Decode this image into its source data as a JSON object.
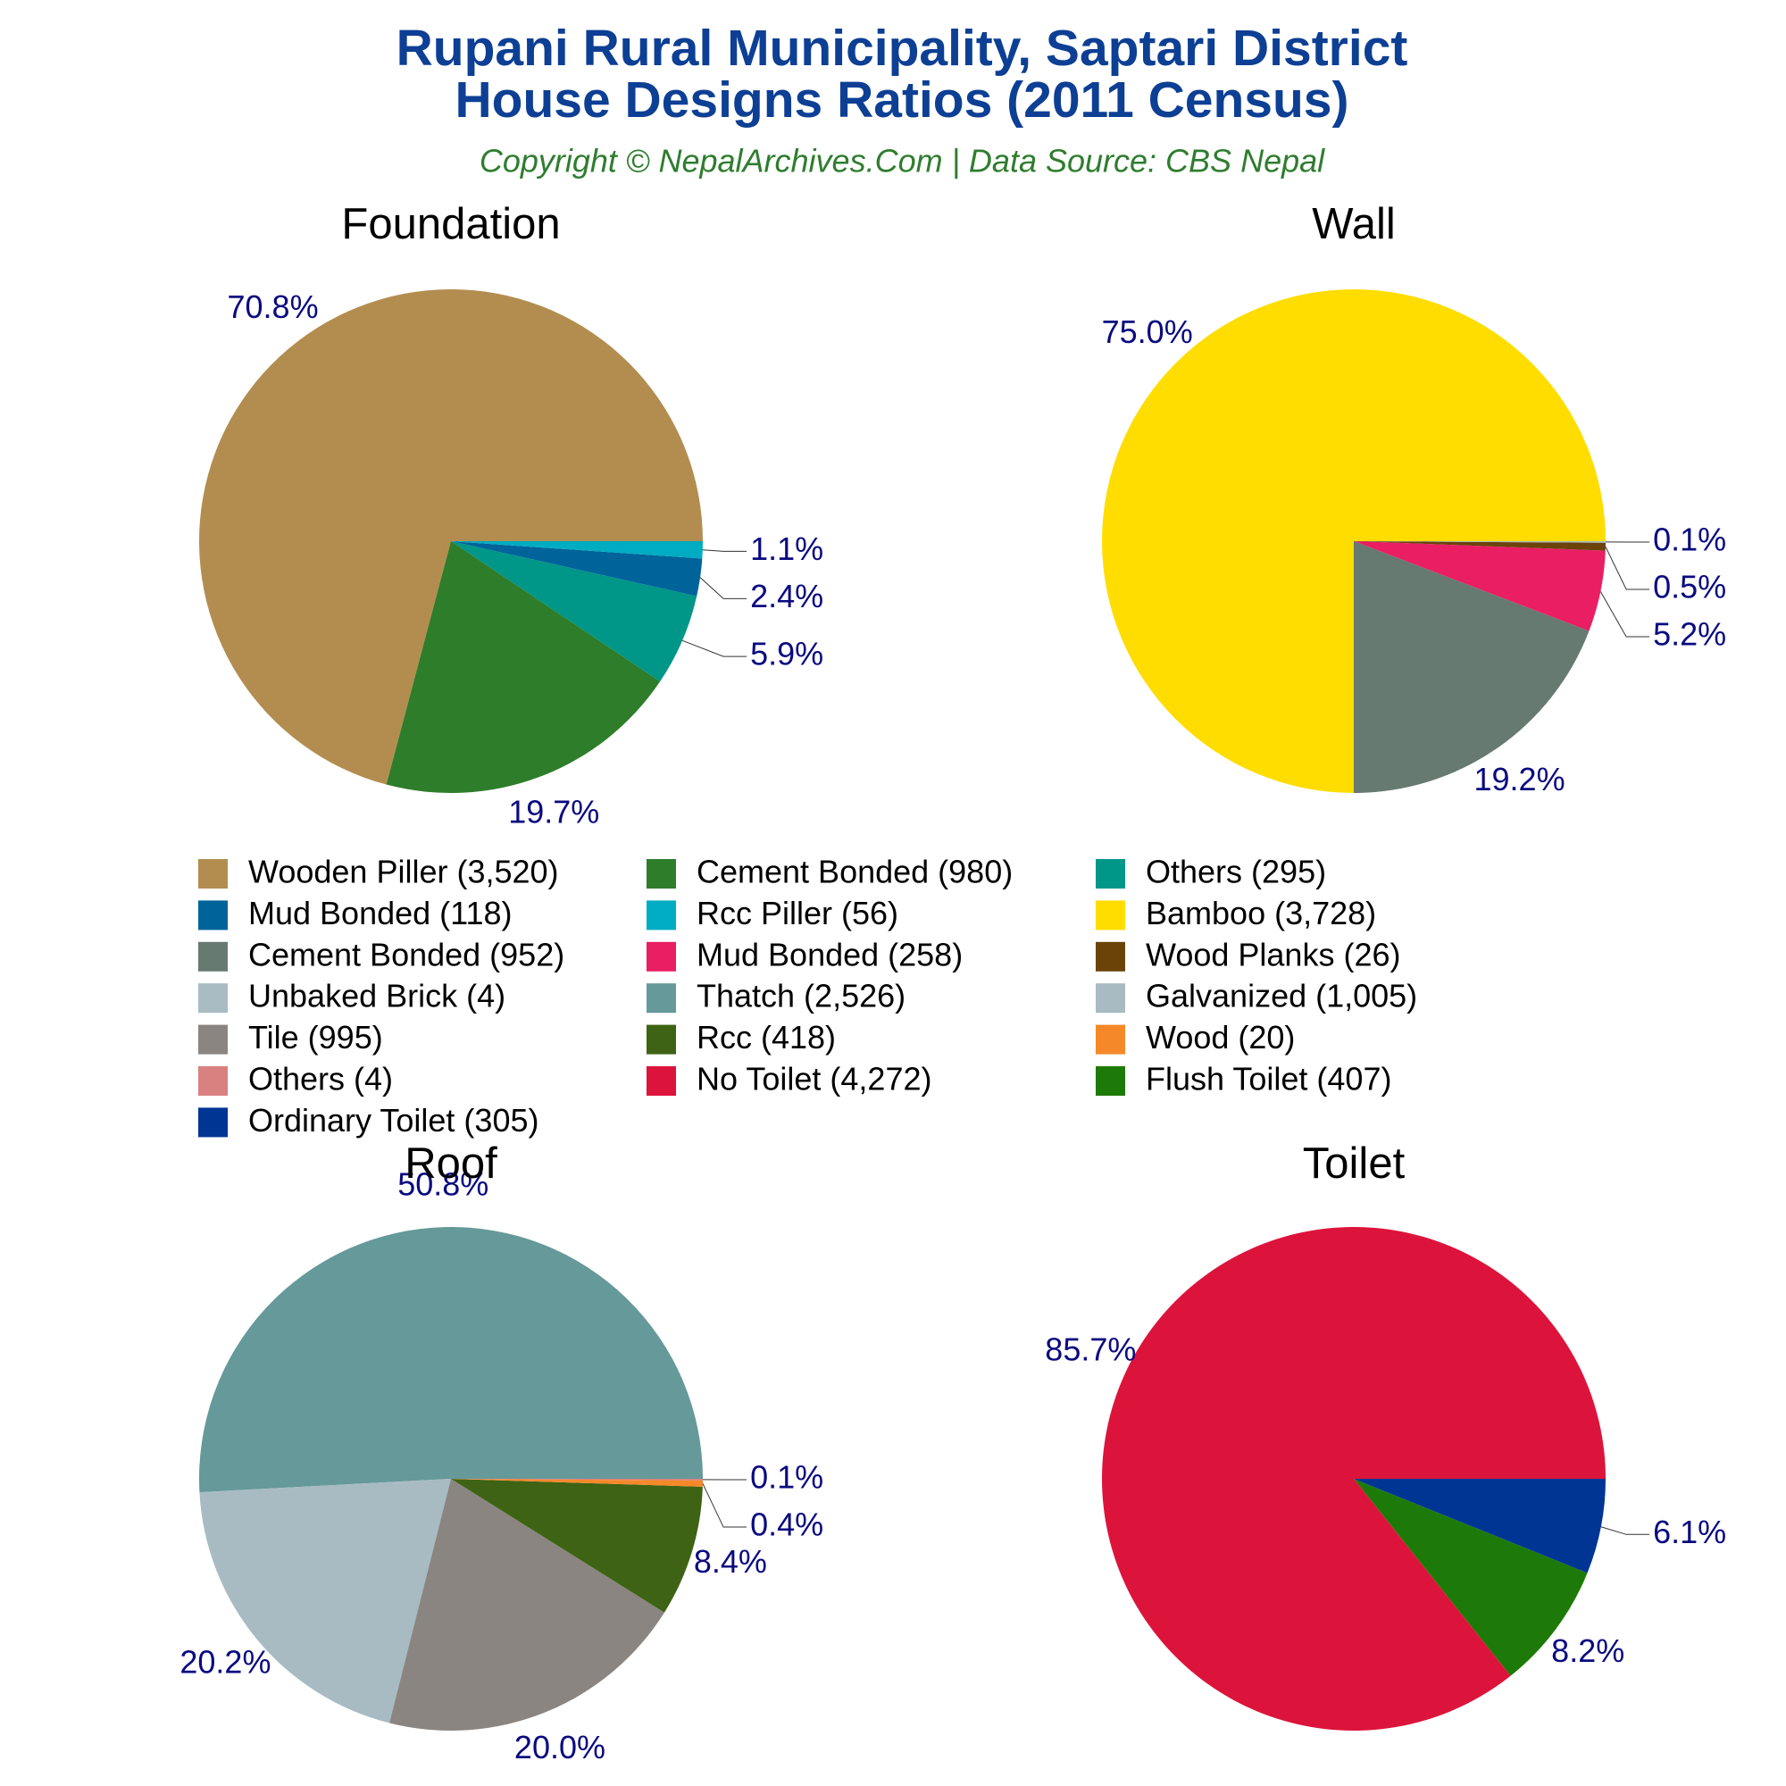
{
  "title": "Rupani Rural Municipality, Saptari District",
  "title_line2": "House Designs Ratios (2011 Census)",
  "subtitle": "Copyright © NepalArchives.Com | Data Source: CBS Nepal",
  "chart_data": [
    {
      "type": "pie",
      "title": "Foundation",
      "categories": [
        "Wooden Piller (3,520)",
        "Cement Bonded (980)",
        "Others (295)",
        "Mud Bonded (118)",
        "Rcc Piller (56)"
      ],
      "values": [
        70.8,
        19.7,
        5.9,
        2.4,
        1.1
      ],
      "value_labels": [
        "70.8%",
        "19.7%",
        "5.9%",
        "2.4%",
        "1.1%"
      ],
      "colors": [
        "#b38d50",
        "#2e7d2a",
        "#009688",
        "#00649a",
        "#00acc1"
      ]
    },
    {
      "type": "pie",
      "title": "Wall",
      "categories": [
        "Bamboo (3,728)",
        "Cement Bonded (952)",
        "Mud Bonded (258)",
        "Wood Planks (26)",
        "Unbaked Brick (4)"
      ],
      "values": [
        75.0,
        19.2,
        5.2,
        0.5,
        0.1
      ],
      "value_labels": [
        "75.0%",
        "19.2%",
        "5.2%",
        "0.5%",
        "0.1%"
      ],
      "colors": [
        "#ffdd00",
        "#667a72",
        "#e91e63",
        "#6b4309",
        "#a9bcc4"
      ]
    },
    {
      "type": "pie",
      "title": "Roof",
      "categories": [
        "Thatch (2,526)",
        "Galvanized (1,005)",
        "Tile (995)",
        "Rcc (418)",
        "Wood (20)",
        "Others (4)"
      ],
      "values": [
        50.8,
        20.2,
        20.0,
        8.4,
        0.4,
        0.1
      ],
      "value_labels": [
        "50.8%",
        "20.2%",
        "20.0%",
        "8.4%",
        "0.4%",
        "0.1%"
      ],
      "colors": [
        "#669999",
        "#a8bbc3",
        "#8a8580",
        "#3e6314",
        "#f5892a",
        "#d98080"
      ]
    },
    {
      "type": "pie",
      "title": "Toilet",
      "categories": [
        "No Toilet (4,272)",
        "Flush Toilet (407)",
        "Ordinary Toilet (305)"
      ],
      "values": [
        85.7,
        8.2,
        6.1
      ],
      "value_labels": [
        "85.7%",
        "8.2%",
        "6.1%"
      ],
      "colors": [
        "#dc143c",
        "#1e7a08",
        "#003594"
      ]
    }
  ]
}
